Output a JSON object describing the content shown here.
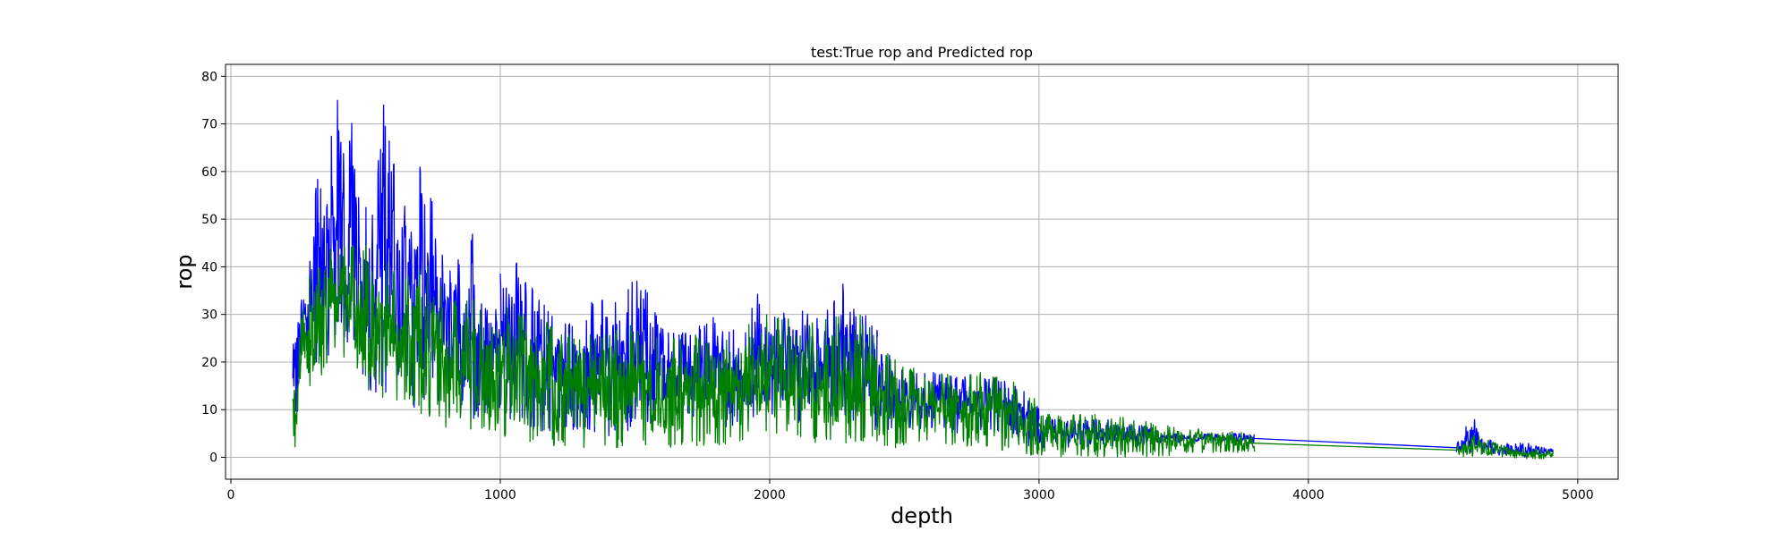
{
  "chart_data": {
    "type": "line",
    "title": "test:True rop and Predicted rop",
    "xlabel": "depth",
    "ylabel": "rop",
    "xlim": [
      -20,
      5150
    ],
    "ylim": [
      -4.6,
      82.5
    ],
    "xticks": [
      0,
      1000,
      2000,
      3000,
      4000,
      5000
    ],
    "yticks": [
      0,
      10,
      20,
      30,
      40,
      50,
      60,
      70,
      80
    ],
    "grid": true,
    "legend": "none",
    "series": [
      {
        "color": "#0000ff",
        "segments": [
          {
            "x_range": [
              230,
              290
            ],
            "envelope": [
              [
                230,
                12,
                25
              ],
              [
                245,
                8,
                30
              ],
              [
                260,
                15,
                35
              ],
              [
                275,
                18,
                33
              ],
              [
                290,
                20,
                32
              ]
            ]
          },
          {
            "x_range": [
              290,
              700
            ],
            "envelope": [
              [
                300,
                15,
                45
              ],
              [
                320,
                18,
                62
              ],
              [
                350,
                20,
                50
              ],
              [
                380,
                22,
                74
              ],
              [
                400,
                25,
                76
              ],
              [
                430,
                25,
                60
              ],
              [
                460,
                8,
                79
              ],
              [
                480,
                15,
                55
              ],
              [
                500,
                20,
                62
              ],
              [
                520,
                12,
                50
              ],
              [
                560,
                10,
                78
              ],
              [
                600,
                12,
                62
              ],
              [
                620,
                15,
                69
              ],
              [
                650,
                14,
                50
              ],
              [
                680,
                10,
                55
              ],
              [
                700,
                12,
                50
              ]
            ]
          },
          {
            "x_range": [
              700,
              1000
            ],
            "envelope": [
              [
                730,
                10,
                62
              ],
              [
                760,
                12,
                48
              ],
              [
                800,
                8,
                40
              ],
              [
                850,
                10,
                42
              ],
              [
                880,
                12,
                38
              ],
              [
                900,
                8,
                54
              ],
              [
                940,
                9,
                35
              ],
              [
                980,
                10,
                32
              ],
              [
                1000,
                5,
                33
              ]
            ]
          },
          {
            "x_range": [
              1000,
              2400
            ],
            "envelope": [
              [
                1030,
                8,
                46
              ],
              [
                1100,
                5,
                38
              ],
              [
                1200,
                5,
                30
              ],
              [
                1300,
                5,
                28
              ],
              [
                1360,
                4,
                35
              ],
              [
                1450,
                5,
                33
              ],
              [
                1520,
                6,
                40
              ],
              [
                1600,
                8,
                28
              ],
              [
                1700,
                8,
                26
              ],
              [
                1800,
                6,
                30
              ],
              [
                1900,
                7,
                25
              ],
              [
                1950,
                8,
                35
              ],
              [
                2000,
                8,
                30
              ],
              [
                2100,
                7,
                31
              ],
              [
                2200,
                8,
                30
              ],
              [
                2280,
                8,
                39
              ],
              [
                2350,
                6,
                30
              ],
              [
                2400,
                5,
                28
              ]
            ]
          },
          {
            "x_range": [
              2400,
              3000
            ],
            "envelope": [
              [
                2450,
                5,
                22
              ],
              [
                2500,
                6,
                18
              ],
              [
                2600,
                6,
                18
              ],
              [
                2700,
                5,
                17
              ],
              [
                2800,
                4,
                17
              ],
              [
                2900,
                3,
                16
              ],
              [
                3000,
                2,
                12
              ]
            ]
          },
          {
            "x_range": [
              3000,
              3800
            ],
            "envelope": [
              [
                3050,
                2,
                8
              ],
              [
                3150,
                2,
                8
              ],
              [
                3250,
                2,
                8
              ],
              [
                3350,
                2,
                7
              ],
              [
                3450,
                3,
                6
              ],
              [
                3550,
                3,
                5
              ],
              [
                3650,
                3,
                5
              ],
              [
                3780,
                3,
                5
              ]
            ]
          },
          {
            "x_range": [
              3780,
              4550
            ],
            "envelope": [
              [
                3780,
                4,
                4
              ],
              [
                4550,
                2,
                2
              ]
            ]
          },
          {
            "x_range": [
              4550,
              4910
            ],
            "envelope": [
              [
                4560,
                1,
                4
              ],
              [
                4620,
                1,
                10
              ],
              [
                4650,
                1,
                4
              ],
              [
                4750,
                0,
                3
              ],
              [
                4850,
                0,
                3
              ],
              [
                4910,
                1,
                2
              ]
            ]
          }
        ]
      },
      {
        "color": "#008000",
        "segments": [
          {
            "x_range": [
              230,
              290
            ],
            "envelope": [
              [
                230,
                2,
                24
              ],
              [
                245,
                1,
                18
              ],
              [
                260,
                10,
                32
              ],
              [
                275,
                14,
                31
              ],
              [
                290,
                16,
                30
              ]
            ]
          },
          {
            "x_range": [
              290,
              700
            ],
            "envelope": [
              [
                300,
                14,
                38
              ],
              [
                350,
                18,
                44
              ],
              [
                400,
                20,
                46
              ],
              [
                450,
                20,
                45
              ],
              [
                500,
                15,
                45
              ],
              [
                550,
                10,
                44
              ],
              [
                600,
                12,
                40
              ],
              [
                650,
                12,
                38
              ],
              [
                700,
                10,
                40
              ]
            ]
          },
          {
            "x_range": [
              700,
              1000
            ],
            "envelope": [
              [
                730,
                8,
                42
              ],
              [
                760,
                10,
                38
              ],
              [
                800,
                6,
                35
              ],
              [
                850,
                8,
                32
              ],
              [
                900,
                4,
                34
              ],
              [
                950,
                6,
                30
              ],
              [
                1000,
                3,
                28
              ]
            ]
          },
          {
            "x_range": [
              1000,
              2400
            ],
            "envelope": [
              [
                1050,
                4,
                32
              ],
              [
                1100,
                3,
                30
              ],
              [
                1200,
                2,
                28
              ],
              [
                1300,
                2,
                26
              ],
              [
                1400,
                2,
                27
              ],
              [
                1500,
                2,
                28
              ],
              [
                1600,
                2,
                25
              ],
              [
                1700,
                2,
                26
              ],
              [
                1800,
                2,
                25
              ],
              [
                1900,
                3,
                27
              ],
              [
                1960,
                5,
                34
              ],
              [
                2000,
                5,
                30
              ],
              [
                2100,
                3,
                29
              ],
              [
                2200,
                3,
                29
              ],
              [
                2300,
                3,
                32
              ],
              [
                2400,
                3,
                26
              ]
            ]
          },
          {
            "x_range": [
              2400,
              3000
            ],
            "envelope": [
              [
                2450,
                2,
                22
              ],
              [
                2500,
                2,
                19
              ],
              [
                2600,
                3,
                19
              ],
              [
                2700,
                2,
                17
              ],
              [
                2800,
                2,
                18
              ],
              [
                2900,
                1,
                16
              ],
              [
                3000,
                0,
                12
              ]
            ]
          },
          {
            "x_range": [
              3000,
              3800
            ],
            "envelope": [
              [
                3050,
                0,
                9
              ],
              [
                3150,
                0,
                9
              ],
              [
                3250,
                0,
                9
              ],
              [
                3350,
                0,
                8
              ],
              [
                3450,
                0,
                7
              ],
              [
                3550,
                1,
                6
              ],
              [
                3650,
                1,
                6
              ],
              [
                3780,
                1,
                5
              ]
            ]
          },
          {
            "x_range": [
              3780,
              4550
            ],
            "envelope": [
              [
                3780,
                3,
                3
              ],
              [
                4550,
                1.5,
                1.5
              ]
            ]
          },
          {
            "x_range": [
              4550,
              4910
            ],
            "envelope": [
              [
                4560,
                0,
                3
              ],
              [
                4620,
                0,
                5
              ],
              [
                4650,
                0,
                4
              ],
              [
                4750,
                0,
                2
              ],
              [
                4850,
                -1,
                2
              ],
              [
                4910,
                0,
                1.5
              ]
            ]
          }
        ]
      }
    ]
  }
}
